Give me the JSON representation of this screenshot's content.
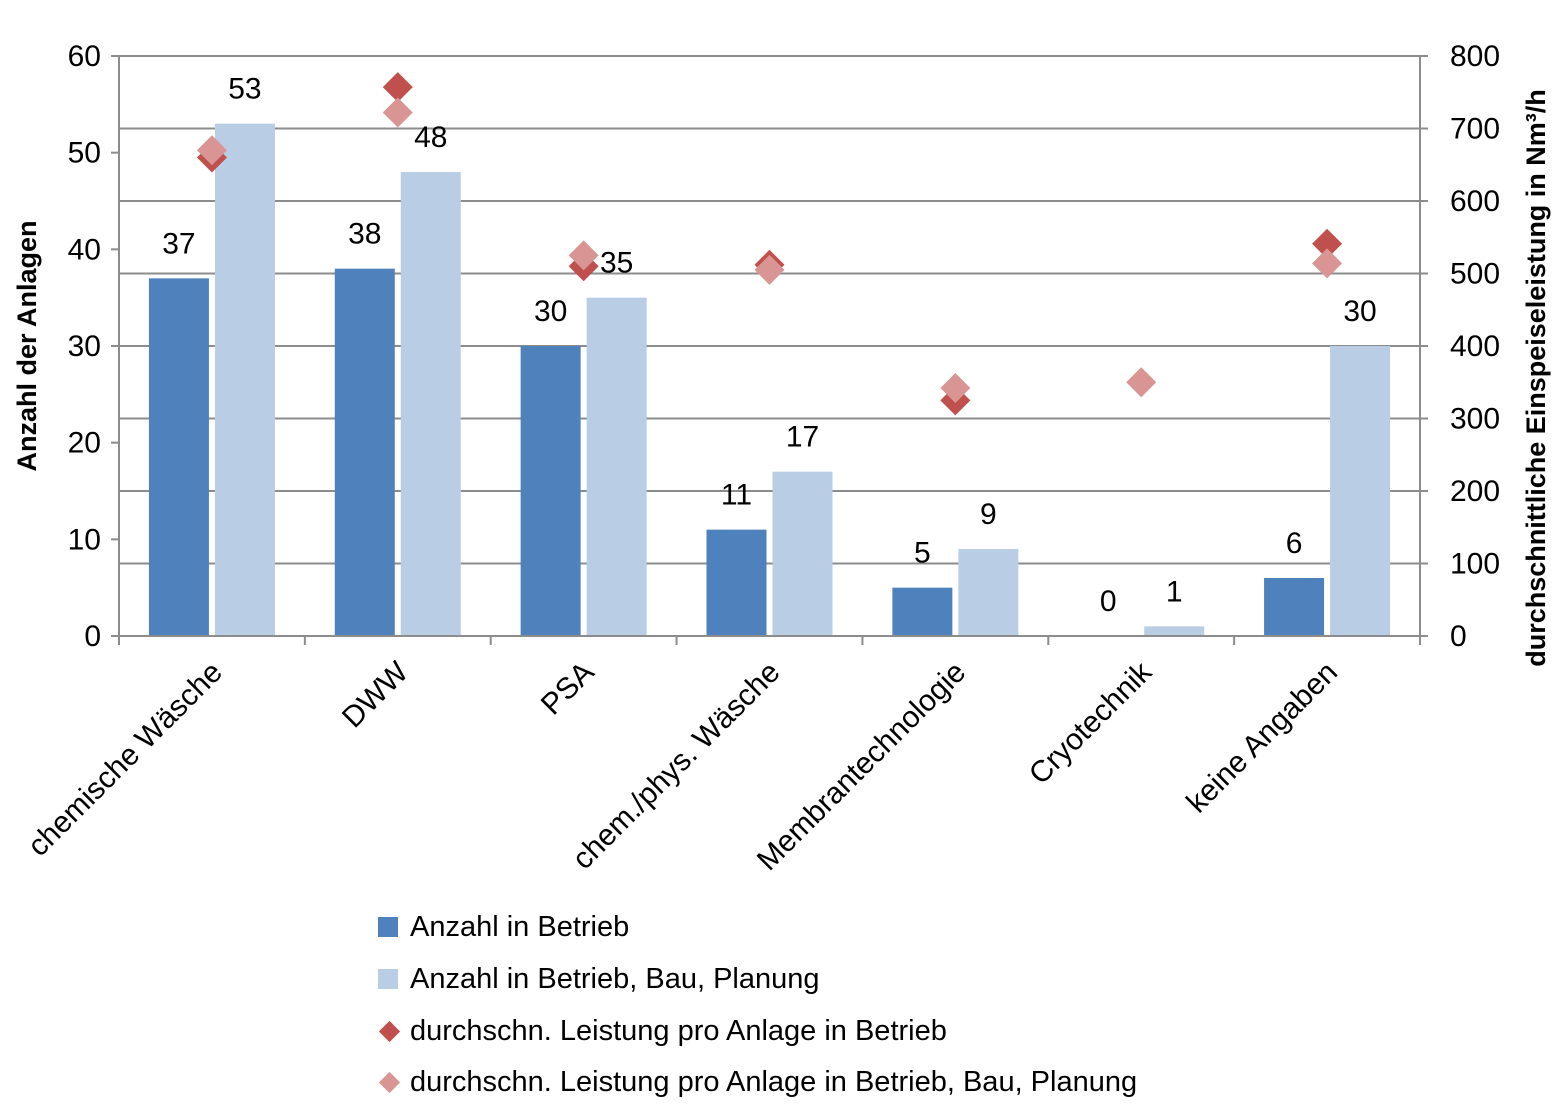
{
  "chart_data": {
    "type": "bar",
    "categories": [
      "chemische Wäsche",
      "DWW",
      "PSA",
      "chem./phys. Wäsche",
      "Membrantechnologie",
      "Cryotechnik",
      "keine Angaben"
    ],
    "ylabel_left": "Anzahl der Anlagen",
    "ylabel_right": "durchschnittliche Einspeiseleistung in Nm³/h",
    "ylim_left": [
      0,
      60
    ],
    "yticks_left": [
      "0",
      "10",
      "20",
      "30",
      "40",
      "50",
      "60"
    ],
    "ylim_right": [
      0,
      800
    ],
    "yticks_right": [
      "0",
      "100",
      "200",
      "300",
      "400",
      "500",
      "600",
      "700",
      "800"
    ],
    "grid": true,
    "legend_position": "bottom",
    "series": [
      {
        "name": "Anzahl in Betrieb",
        "type": "bar",
        "axis": "left",
        "color": "#4F81BD",
        "values": [
          37,
          38,
          30,
          11,
          5,
          0,
          6
        ],
        "labels": [
          "37",
          "38",
          "30",
          "11",
          "5",
          "0",
          "6"
        ]
      },
      {
        "name": "Anzahl in Betrieb, Bau, Planung",
        "type": "bar",
        "axis": "left",
        "color": "#B9CDE5",
        "values": [
          53,
          48,
          35,
          17,
          9,
          1,
          30
        ],
        "labels": [
          "53",
          "48",
          "35",
          "17",
          "9",
          "1",
          "30"
        ]
      },
      {
        "name": "durchschn. Leistung pro Anlage in Betrieb",
        "type": "scatter",
        "marker": "diamond",
        "axis": "right",
        "color": "#C0504D",
        "values": [
          660,
          757,
          510,
          512,
          325,
          null,
          541
        ]
      },
      {
        "name": "durchschn. Leistung pro Anlage in Betrieb, Bau, Planung",
        "type": "scatter",
        "marker": "diamond",
        "axis": "right",
        "color": "#D99594",
        "values": [
          670,
          722,
          525,
          505,
          342,
          350,
          514
        ]
      }
    ]
  }
}
